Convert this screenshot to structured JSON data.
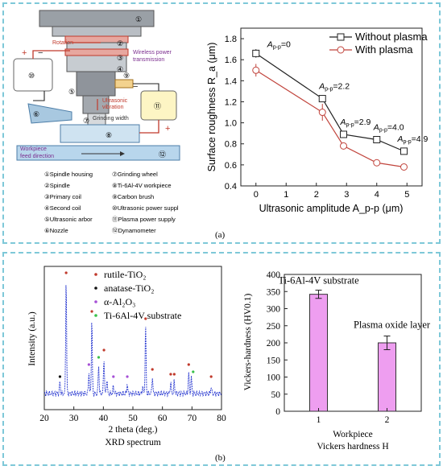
{
  "panel_a": {
    "caption": "(a)",
    "schematic": {
      "callouts": {
        "rotation": "Rotation",
        "wireless": "Wireless power",
        "transmission": "transmission",
        "ultrasonic": "Ultrasonic",
        "vibration": "vibration",
        "grinding_width": "Grinding width",
        "workpiece": "Workpiece",
        "feed_direction": "feed direction",
        "plus": "+",
        "minus": "−"
      },
      "numbers": [
        "①",
        "②",
        "③",
        "④",
        "⑤",
        "⑥",
        "⑦",
        "⑧",
        "⑨",
        "⑩",
        "⑪",
        "⑫"
      ],
      "legend_left": [
        "①Spindle housing",
        "②Spindle",
        "③Primary coil",
        "④Second coil",
        "⑤Ultrasonic arbor",
        "⑥Nozzle"
      ],
      "legend_right": [
        "⑦Grinding wheel",
        "⑧Ti-6Al-4V workpiece",
        "⑨Carbon brush",
        "⑩Ultrasonic power suppl",
        "⑪Plasma power supply",
        "⑫Dynamometer"
      ],
      "colors": {
        "housing": "#8f939a",
        "coil_red": "#c0392b",
        "wireless_purple": "#7b2d8e",
        "supply_yellow": "#fdf5c4",
        "nozzle_blue": "#a8c8e0",
        "workpiece": "#cfe3f1"
      }
    },
    "chart_data": {
      "type": "line",
      "xlabel": "Ultrasonic amplitude A_p-p (μm)",
      "ylabel": "Surface roughness R_a (μm)",
      "xlim": [
        -0.5,
        5.5
      ],
      "ylim": [
        0.4,
        1.9
      ],
      "xticks": [
        "0",
        "1",
        "2",
        "3",
        "4",
        "5"
      ],
      "yticks": [
        "0.4",
        "0.6",
        "0.8",
        "1.0",
        "1.2",
        "1.4",
        "1.6",
        "1.8"
      ],
      "series": [
        {
          "name": "Without plasma",
          "x": [
            0,
            2.2,
            2.9,
            4.0,
            4.9
          ],
          "y": [
            1.66,
            1.23,
            0.89,
            0.84,
            0.73
          ],
          "err": [
            0.04,
            0.03,
            0.02,
            0.02,
            0.02
          ],
          "color": "#222222",
          "marker": "square"
        },
        {
          "name": "With plasma",
          "x": [
            0,
            2.2,
            2.9,
            4.0,
            4.9
          ],
          "y": [
            1.5,
            1.1,
            0.78,
            0.62,
            0.58
          ],
          "err": [
            0.06,
            0.08,
            0.02,
            0.02,
            0.02
          ],
          "color": "#c1443c",
          "marker": "circle"
        }
      ],
      "annotations": [
        {
          "text": "=0",
          "x": 0,
          "y": 1.66
        },
        {
          "text": "=2.2",
          "x": 2.2,
          "y": 1.23
        },
        {
          "text": "=2.9",
          "x": 2.9,
          "y": 0.89
        },
        {
          "text": "=4.0",
          "x": 4.0,
          "y": 0.84
        },
        {
          "text": "=4.9",
          "x": 4.9,
          "y": 0.73
        }
      ],
      "legend_position": "top-right"
    }
  },
  "panel_b": {
    "caption": "(b)",
    "xrd": {
      "chart_data": {
        "type": "line",
        "xlabel": "2 theta (deg.)",
        "ylabel": "Intensity (a.u.)",
        "subtitle": "XRD spectrum",
        "xlim": [
          20,
          80
        ],
        "xticks": [
          "20",
          "30",
          "40",
          "50",
          "60",
          "70",
          "80"
        ],
        "legend": [
          {
            "name": "rutile-TiO₂",
            "color": "#c0392b"
          },
          {
            "name": "anatase-TiO₂",
            "color": "#111111"
          },
          {
            "name": "α-Al₂O₃",
            "color": "#a64fd6"
          },
          {
            "name": "Ti-6Al-4V substrate",
            "color": "#39c04a"
          }
        ],
        "peaks": [
          {
            "x": 25.3,
            "h": 0.1
          },
          {
            "x": 27.4,
            "h": 0.96
          },
          {
            "x": 35.1,
            "h": 0.18
          },
          {
            "x": 36.1,
            "h": 0.62
          },
          {
            "x": 38.4,
            "h": 0.24
          },
          {
            "x": 40.2,
            "h": 0.3
          },
          {
            "x": 41.2,
            "h": 0.12
          },
          {
            "x": 43.4,
            "h": 0.06
          },
          {
            "x": 48.1,
            "h": 0.08
          },
          {
            "x": 53.3,
            "h": 0.06
          },
          {
            "x": 54.3,
            "h": 0.56
          },
          {
            "x": 56.6,
            "h": 0.14
          },
          {
            "x": 62.8,
            "h": 0.1
          },
          {
            "x": 64.0,
            "h": 0.1
          },
          {
            "x": 68.9,
            "h": 0.18
          },
          {
            "x": 69.8,
            "h": 0.14
          },
          {
            "x": 76.5,
            "h": 0.06
          }
        ],
        "markers": [
          {
            "x": 25.3,
            "h": 0.1,
            "phase": 1
          },
          {
            "x": 27.4,
            "h": 0.96,
            "phase": 0
          },
          {
            "x": 35.1,
            "h": 0.2,
            "phase": 2
          },
          {
            "x": 36.1,
            "h": 0.64,
            "phase": 0
          },
          {
            "x": 38.4,
            "h": 0.26,
            "phase": 3
          },
          {
            "x": 40.2,
            "h": 0.32,
            "phase": 0
          },
          {
            "x": 43.4,
            "h": 0.1,
            "phase": 2
          },
          {
            "x": 48.1,
            "h": 0.1,
            "phase": 2
          },
          {
            "x": 54.3,
            "h": 0.58,
            "phase": 0
          },
          {
            "x": 56.6,
            "h": 0.16,
            "phase": 0
          },
          {
            "x": 62.8,
            "h": 0.12,
            "phase": 0
          },
          {
            "x": 64.0,
            "h": 0.12,
            "phase": 0
          },
          {
            "x": 68.9,
            "h": 0.2,
            "phase": 0
          },
          {
            "x": 70.4,
            "h": 0.14,
            "phase": 3
          },
          {
            "x": 76.5,
            "h": 0.1,
            "phase": 0
          }
        ],
        "line_color": "#2a3ad1"
      }
    },
    "hardness": {
      "chart_data": {
        "type": "bar",
        "categories": [
          "1",
          "2"
        ],
        "values": [
          342,
          200
        ],
        "errors": [
          12,
          20
        ],
        "bar_labels": [
          "Ti-6Al-4V substrate",
          "Plasma oxide layer"
        ],
        "xlabel": "Workpiece",
        "subtitle": "Vickers hardness H",
        "ylabel": "Vickers-hardness (HV0.1)",
        "ylim": [
          0,
          400
        ],
        "yticks": [
          "0",
          "50",
          "100",
          "150",
          "200",
          "250",
          "300",
          "350",
          "400"
        ],
        "bar_color": "#ee9ef0"
      }
    }
  }
}
